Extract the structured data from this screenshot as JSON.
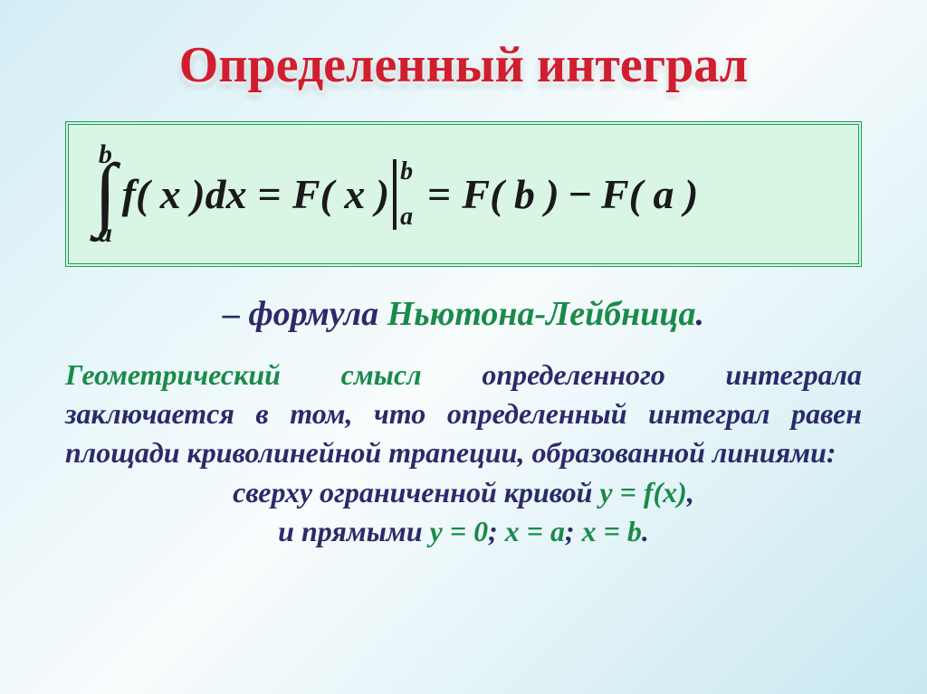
{
  "title": "Определенный интеграл",
  "formula": {
    "upper_limit": "b",
    "lower_limit": "a",
    "integrand": "f( x )dx",
    "eq1": "=",
    "antideriv": "F( x )",
    "eval_upper": "b",
    "eval_lower": "a",
    "eq2": "=",
    "term1": "F( b )",
    "minus": "−",
    "term2": "F( a )"
  },
  "subtitle": {
    "dash": "– формула ",
    "name": "Ньютона-Лейбница",
    "dot": "."
  },
  "body": {
    "geom_label": "Геометрический смысл",
    "p1_a": " определенного интеграла заключается в том, что определенный интеграл равен площади криволинейной трапеции, образованной линиями:",
    "line_top_a": "сверху ограниченной кривой ",
    "eq_top": "y = f(x)",
    "comma1": ",",
    "line_bot_a": "и прямыми  ",
    "eq1": "y = 0",
    "sep1": ";  ",
    "eq2": "x = a",
    "sep2": ";  ",
    "eq3": "x = b",
    "dot": "."
  },
  "styles": {
    "title_color": "#d01e2e",
    "box_bg": "#d9f5e4",
    "box_border": "#1a9e5a",
    "text_color": "#2a2a6a",
    "highlight_color": "#1a8a4a",
    "title_fontsize": 56,
    "formula_fontsize": 46,
    "subtitle_fontsize": 38,
    "body_fontsize": 32
  }
}
